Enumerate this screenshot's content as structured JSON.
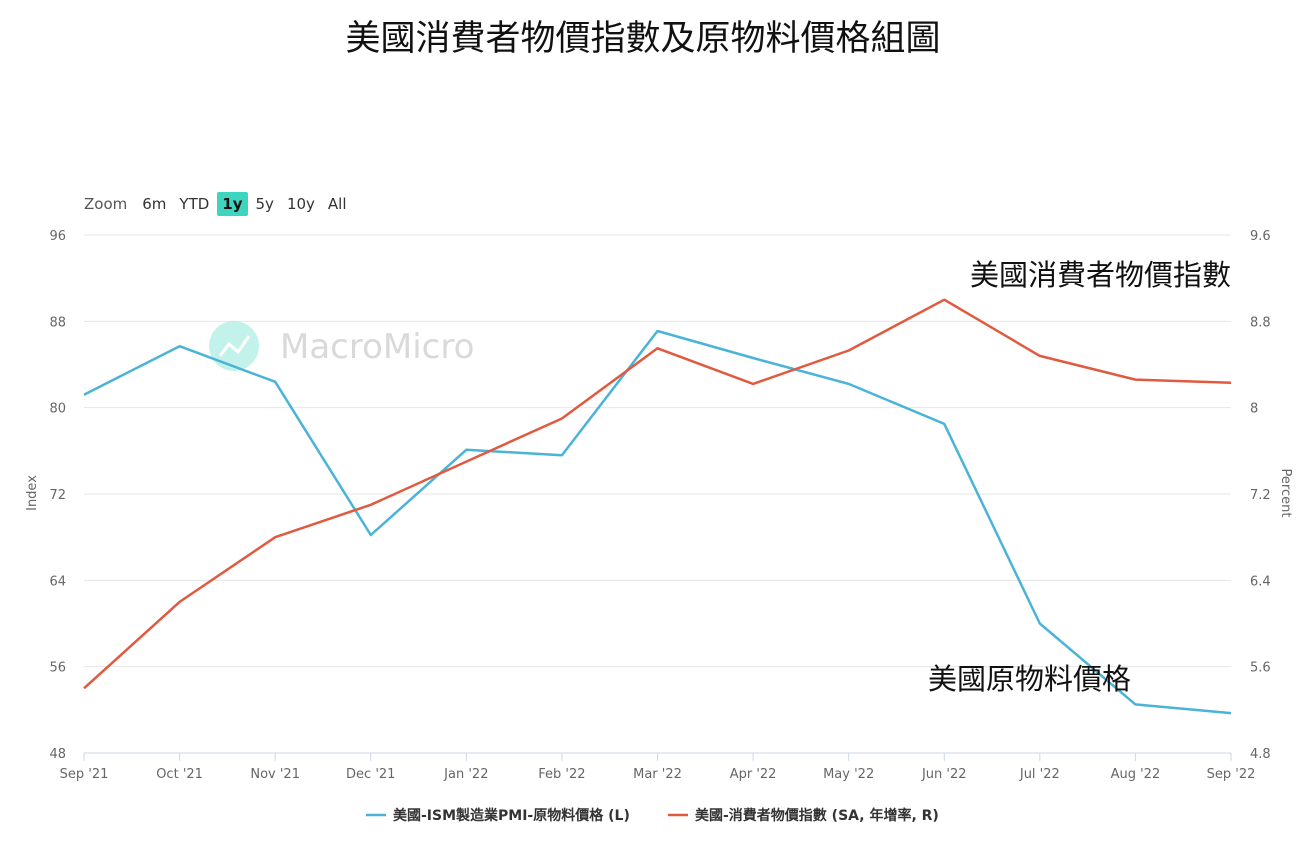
{
  "title": "美國消費者物價指數及原物料價格組圖",
  "zoom": {
    "label": "Zoom",
    "options": [
      "6m",
      "YTD",
      "1y",
      "5y",
      "10y",
      "All"
    ],
    "selected": "1y"
  },
  "watermark": "MacroMicro",
  "annotations": {
    "cpi": "美國消費者物價指數",
    "raw": "美國原物料價格"
  },
  "colors": {
    "pmi": "#4ab3d8",
    "cpi": "#e05a40",
    "active_zoom": "#3dd5c0"
  },
  "chart_data": {
    "type": "line",
    "categories": [
      "Sep '21",
      "Oct '21",
      "Nov '21",
      "Dec '21",
      "Jan '22",
      "Feb '22",
      "Mar '22",
      "Apr '22",
      "May '22",
      "Jun '22",
      "Jul '22",
      "Aug '22",
      "Sep '22"
    ],
    "ylabel_left": "Index",
    "ylabel_right": "Percent",
    "ylim_left": [
      48,
      96
    ],
    "ylim_right": [
      4.8,
      9.6
    ],
    "yticks_left": [
      48,
      56,
      64,
      72,
      80,
      88,
      96
    ],
    "yticks_right": [
      4.8,
      5.6,
      6.4,
      7.2,
      8,
      8.8,
      9.6
    ],
    "grid": true,
    "legend_position": "bottom",
    "series": [
      {
        "name": "美國-ISM製造業PMI-原物料價格 (L)",
        "axis": "left",
        "values": [
          81.2,
          85.7,
          82.4,
          68.2,
          76.1,
          75.6,
          87.1,
          84.6,
          82.2,
          78.5,
          60.0,
          52.5,
          51.7
        ]
      },
      {
        "name": "美國-消費者物價指數 (SA, 年增率, R)",
        "axis": "right",
        "values": [
          5.4,
          6.2,
          6.8,
          7.1,
          7.5,
          7.9,
          8.55,
          8.22,
          8.53,
          9.0,
          8.48,
          8.26,
          8.23
        ]
      }
    ]
  }
}
